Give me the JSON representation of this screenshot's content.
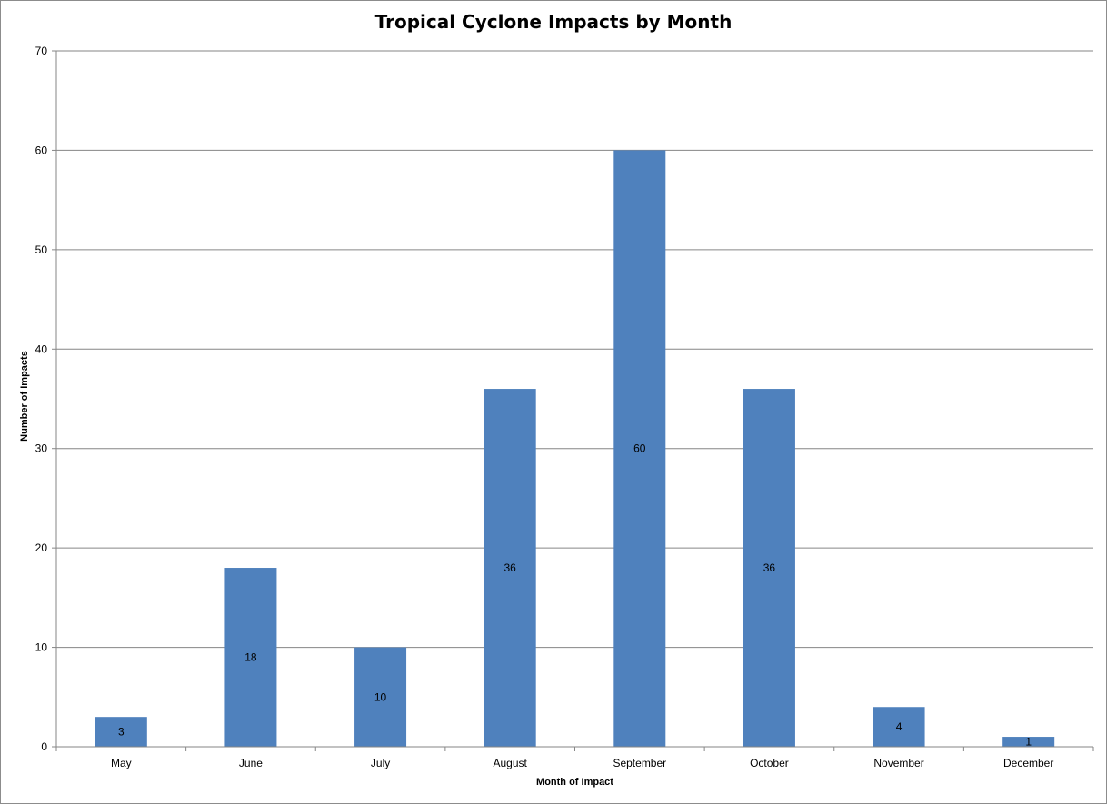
{
  "chart_data": {
    "type": "bar",
    "title": "Tropical Cyclone Impacts by Month",
    "xlabel": "Month of Impact",
    "ylabel": "Number of Impacts",
    "categories": [
      "May",
      "June",
      "July",
      "August",
      "September",
      "October",
      "November",
      "December"
    ],
    "values": [
      3,
      18,
      10,
      36,
      60,
      36,
      4,
      1
    ],
    "data_labels": [
      "3",
      "18",
      "10",
      "36",
      "60",
      "36",
      "4",
      "1"
    ],
    "ylim": [
      0,
      70
    ],
    "yticks": [
      "0",
      "10",
      "20",
      "30",
      "40",
      "50",
      "60",
      "70"
    ],
    "grid": true,
    "legend": "none",
    "bar_color": "#4f81bd"
  }
}
